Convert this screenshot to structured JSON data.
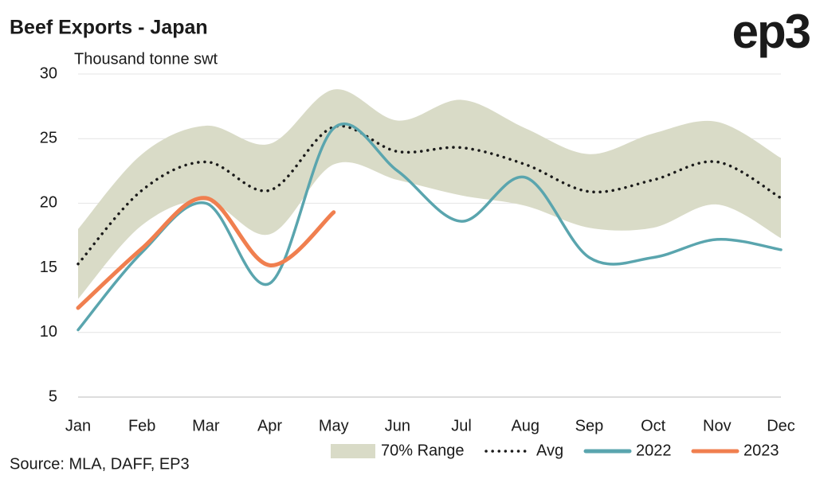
{
  "chart_data": {
    "type": "line",
    "title": "Beef Exports - Japan",
    "subtitle": "Thousand tonne swt",
    "source": "Source: MLA, DAFF, EP3",
    "logo": "ep3",
    "categories": [
      "Jan",
      "Feb",
      "Mar",
      "Apr",
      "May",
      "Jun",
      "Jul",
      "Aug",
      "Sep",
      "Oct",
      "Nov",
      "Dec"
    ],
    "ylim": [
      5,
      30
    ],
    "yticks": [
      5,
      10,
      15,
      20,
      25,
      30
    ],
    "grid": true,
    "range": {
      "name": "70% Range",
      "color": "#d9dbc7",
      "upper": [
        18,
        23.8,
        26,
        24.6,
        28.8,
        26.4,
        28,
        25.8,
        23.8,
        25.4,
        26.3,
        23.5
      ],
      "lower": [
        12.6,
        18.3,
        20.2,
        17.6,
        23,
        21.8,
        20.6,
        19.8,
        18.1,
        18.1,
        19.9,
        17.3
      ]
    },
    "series": [
      {
        "name": "Avg",
        "color": "#1a1a1a",
        "style": "dotted",
        "values": [
          15.3,
          21,
          23.2,
          21,
          25.9,
          24,
          24.3,
          23,
          20.9,
          21.8,
          23.2,
          20.4
        ]
      },
      {
        "name": "2022",
        "color": "#5aa5ae",
        "values": [
          10.2,
          16.2,
          20,
          13.8,
          25.8,
          22.5,
          18.6,
          22,
          15.8,
          15.8,
          17.2,
          16.4
        ]
      },
      {
        "name": "2023",
        "color": "#f07f4f",
        "values": [
          11.9,
          16.5,
          20.4,
          15.2,
          19.3,
          null,
          null,
          null,
          null,
          null,
          null,
          null
        ]
      }
    ]
  }
}
